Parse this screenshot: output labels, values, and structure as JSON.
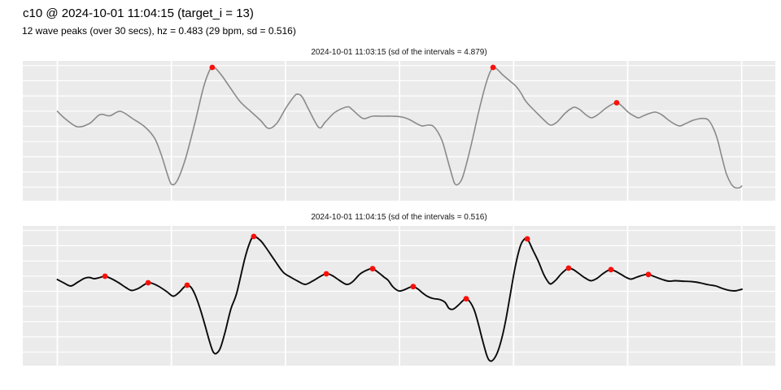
{
  "title": "c10 @ 2024-10-01 11:04:15 (target_i = 13)",
  "subtitle": "12 wave peaks (over 30 secs), hz = 0.483 (29 bpm, sd = 0.516)",
  "colors": {
    "panel_background": "#EBEBEB",
    "strip_background": "#D4D4D4",
    "gridline": "#FFFFFF",
    "series_top": "#8A8A8A",
    "series_bottom": "#0A0A0A",
    "peak_marker": "#F8100A"
  },
  "chart_data": [
    {
      "type": "line",
      "title": "2024-10-01 11:03:15 (sd of the intervals = 4.879)",
      "x_unit": "seconds",
      "x_range": [
        0,
        30
      ],
      "x_gridlines": [
        0,
        5,
        10,
        15,
        20,
        25,
        30
      ],
      "y_unit": "normalized amplitude (axis unlabeled in figure)",
      "y_range": [
        -1,
        1
      ],
      "grid": true,
      "legend": "none",
      "line_color": "#8A8A8A",
      "points": [
        [
          0,
          0.279
        ],
        [
          0.34,
          0.174
        ],
        [
          0.87,
          0.058
        ],
        [
          1.41,
          0.105
        ],
        [
          1.87,
          0.233
        ],
        [
          2.3,
          0.215
        ],
        [
          2.76,
          0.279
        ],
        [
          3.3,
          0.174
        ],
        [
          3.83,
          0.058
        ],
        [
          4.26,
          -0.105
        ],
        [
          4.55,
          -0.337
        ],
        [
          4.83,
          -0.628
        ],
        [
          5.01,
          -0.767
        ],
        [
          5.26,
          -0.709
        ],
        [
          5.62,
          -0.395
        ],
        [
          6.04,
          0.128
        ],
        [
          6.4,
          0.616
        ],
        [
          6.65,
          0.849
        ],
        [
          6.79,
          0.907
        ],
        [
          6.97,
          0.884
        ],
        [
          7.26,
          0.767
        ],
        [
          7.58,
          0.616
        ],
        [
          8.01,
          0.419
        ],
        [
          8.47,
          0.279
        ],
        [
          8.9,
          0.151
        ],
        [
          9.25,
          0.035
        ],
        [
          9.61,
          0.105
        ],
        [
          10.04,
          0.337
        ],
        [
          10.4,
          0.5
        ],
        [
          10.57,
          0.523
        ],
        [
          10.75,
          0.477
        ],
        [
          11.04,
          0.291
        ],
        [
          11.47,
          0.047
        ],
        [
          11.75,
          0.128
        ],
        [
          12.18,
          0.267
        ],
        [
          12.71,
          0.343
        ],
        [
          12.93,
          0.302
        ],
        [
          13.25,
          0.209
        ],
        [
          13.46,
          0.174
        ],
        [
          13.82,
          0.209
        ],
        [
          14.25,
          0.209
        ],
        [
          14.68,
          0.209
        ],
        [
          15.1,
          0.198
        ],
        [
          15.42,
          0.163
        ],
        [
          15.74,
          0.105
        ],
        [
          15.99,
          0.07
        ],
        [
          16.24,
          0.081
        ],
        [
          16.46,
          0.07
        ],
        [
          16.67,
          -0.012
        ],
        [
          16.89,
          -0.163
        ],
        [
          17.1,
          -0.407
        ],
        [
          17.31,
          -0.651
        ],
        [
          17.42,
          -0.756
        ],
        [
          17.56,
          -0.767
        ],
        [
          17.74,
          -0.686
        ],
        [
          17.95,
          -0.453
        ],
        [
          18.21,
          -0.105
        ],
        [
          18.45,
          0.244
        ],
        [
          18.7,
          0.57
        ],
        [
          18.92,
          0.802
        ],
        [
          19.1,
          0.907
        ],
        [
          19.27,
          0.884
        ],
        [
          19.52,
          0.802
        ],
        [
          19.81,
          0.721
        ],
        [
          20.1,
          0.64
        ],
        [
          20.31,
          0.547
        ],
        [
          20.52,
          0.43
        ],
        [
          20.77,
          0.337
        ],
        [
          21.09,
          0.233
        ],
        [
          21.38,
          0.14
        ],
        [
          21.63,
          0.081
        ],
        [
          21.91,
          0.128
        ],
        [
          22.27,
          0.256
        ],
        [
          22.56,
          0.326
        ],
        [
          22.7,
          0.337
        ],
        [
          22.91,
          0.302
        ],
        [
          23.16,
          0.233
        ],
        [
          23.41,
          0.186
        ],
        [
          23.7,
          0.233
        ],
        [
          24.05,
          0.326
        ],
        [
          24.34,
          0.384
        ],
        [
          24.52,
          0.401
        ],
        [
          24.73,
          0.36
        ],
        [
          25.02,
          0.267
        ],
        [
          25.3,
          0.209
        ],
        [
          25.48,
          0.186
        ],
        [
          25.73,
          0.221
        ],
        [
          26.02,
          0.256
        ],
        [
          26.23,
          0.267
        ],
        [
          26.48,
          0.233
        ],
        [
          26.8,
          0.151
        ],
        [
          27.08,
          0.093
        ],
        [
          27.3,
          0.07
        ],
        [
          27.55,
          0.105
        ],
        [
          27.87,
          0.151
        ],
        [
          28.16,
          0.174
        ],
        [
          28.37,
          0.177
        ],
        [
          28.55,
          0.151
        ],
        [
          28.76,
          0.035
        ],
        [
          28.94,
          -0.128
        ],
        [
          29.12,
          -0.36
        ],
        [
          29.33,
          -0.616
        ],
        [
          29.55,
          -0.767
        ],
        [
          29.72,
          -0.814
        ],
        [
          29.9,
          -0.814
        ],
        [
          30,
          -0.791
        ]
      ],
      "peaks": [
        [
          6.79,
          0.907
        ],
        [
          19.1,
          0.907
        ],
        [
          24.52,
          0.401
        ]
      ]
    },
    {
      "type": "line",
      "title": "2024-10-01 11:04:15 (sd of the intervals = 0.516)",
      "x_unit": "seconds",
      "x_range": [
        0,
        30
      ],
      "x_gridlines": [
        0,
        5,
        10,
        15,
        20,
        25,
        30
      ],
      "y_unit": "normalized amplitude (axis unlabeled in figure)",
      "y_range": [
        -1,
        1
      ],
      "grid": true,
      "legend": "none",
      "line_color": "#0A0A0A",
      "points": [
        [
          0,
          0.233
        ],
        [
          0.27,
          0.186
        ],
        [
          0.59,
          0.14
        ],
        [
          0.91,
          0.198
        ],
        [
          1.19,
          0.25
        ],
        [
          1.41,
          0.262
        ],
        [
          1.62,
          0.244
        ],
        [
          1.87,
          0.262
        ],
        [
          2.09,
          0.279
        ],
        [
          2.37,
          0.244
        ],
        [
          2.69,
          0.186
        ],
        [
          3.01,
          0.116
        ],
        [
          3.26,
          0.076
        ],
        [
          3.55,
          0.105
        ],
        [
          3.8,
          0.157
        ],
        [
          3.98,
          0.186
        ],
        [
          4.19,
          0.174
        ],
        [
          4.48,
          0.128
        ],
        [
          4.8,
          0.058
        ],
        [
          5.08,
          -0.006
        ],
        [
          5.33,
          0.047
        ],
        [
          5.55,
          0.122
        ],
        [
          5.69,
          0.151
        ],
        [
          5.87,
          0.116
        ],
        [
          6.04,
          0.012
        ],
        [
          6.26,
          -0.186
        ],
        [
          6.47,
          -0.419
        ],
        [
          6.69,
          -0.674
        ],
        [
          6.83,
          -0.802
        ],
        [
          6.97,
          -0.826
        ],
        [
          7.15,
          -0.744
        ],
        [
          7.36,
          -0.512
        ],
        [
          7.61,
          -0.186
        ],
        [
          7.86,
          0.035
        ],
        [
          8.22,
          0.535
        ],
        [
          8.43,
          0.756
        ],
        [
          8.61,
          0.849
        ],
        [
          8.9,
          0.791
        ],
        [
          9.15,
          0.686
        ],
        [
          9.54,
          0.5
        ],
        [
          9.9,
          0.337
        ],
        [
          10.22,
          0.267
        ],
        [
          10.54,
          0.209
        ],
        [
          10.86,
          0.163
        ],
        [
          11.18,
          0.209
        ],
        [
          11.54,
          0.279
        ],
        [
          11.79,
          0.314
        ],
        [
          12.04,
          0.291
        ],
        [
          12.36,
          0.221
        ],
        [
          12.68,
          0.163
        ],
        [
          12.93,
          0.198
        ],
        [
          13.28,
          0.314
        ],
        [
          13.61,
          0.372
        ],
        [
          13.82,
          0.387
        ],
        [
          14.1,
          0.326
        ],
        [
          14.32,
          0.267
        ],
        [
          14.5,
          0.221
        ],
        [
          14.71,
          0.128
        ],
        [
          14.96,
          0.07
        ],
        [
          15.17,
          0.081
        ],
        [
          15.42,
          0.116
        ],
        [
          15.6,
          0.131
        ],
        [
          15.82,
          0.093
        ],
        [
          16.03,
          0.035
        ],
        [
          16.24,
          -0.012
        ],
        [
          16.49,
          -0.041
        ],
        [
          16.74,
          -0.052
        ],
        [
          16.99,
          -0.093
        ],
        [
          17.17,
          -0.18
        ],
        [
          17.35,
          -0.192
        ],
        [
          17.56,
          -0.14
        ],
        [
          17.78,
          -0.07
        ],
        [
          17.92,
          -0.043
        ],
        [
          18.1,
          -0.093
        ],
        [
          18.28,
          -0.209
        ],
        [
          18.45,
          -0.395
        ],
        [
          18.63,
          -0.628
        ],
        [
          18.81,
          -0.837
        ],
        [
          18.92,
          -0.919
        ],
        [
          19.06,
          -0.93
        ],
        [
          19.24,
          -0.849
        ],
        [
          19.42,
          -0.686
        ],
        [
          19.63,
          -0.395
        ],
        [
          19.84,
          -0.012
        ],
        [
          20.06,
          0.395
        ],
        [
          20.27,
          0.686
        ],
        [
          20.42,
          0.791
        ],
        [
          20.6,
          0.814
        ],
        [
          20.85,
          0.651
        ],
        [
          21.09,
          0.488
        ],
        [
          21.31,
          0.314
        ],
        [
          21.49,
          0.209
        ],
        [
          21.63,
          0.169
        ],
        [
          21.84,
          0.221
        ],
        [
          22.09,
          0.314
        ],
        [
          22.31,
          0.378
        ],
        [
          22.41,
          0.395
        ],
        [
          22.63,
          0.372
        ],
        [
          22.88,
          0.314
        ],
        [
          23.13,
          0.256
        ],
        [
          23.38,
          0.215
        ],
        [
          23.63,
          0.244
        ],
        [
          23.91,
          0.314
        ],
        [
          24.13,
          0.36
        ],
        [
          24.27,
          0.374
        ],
        [
          24.48,
          0.349
        ],
        [
          24.73,
          0.302
        ],
        [
          24.98,
          0.256
        ],
        [
          25.16,
          0.238
        ],
        [
          25.41,
          0.267
        ],
        [
          25.7,
          0.297
        ],
        [
          25.91,
          0.305
        ],
        [
          26.23,
          0.267
        ],
        [
          26.52,
          0.233
        ],
        [
          26.8,
          0.209
        ],
        [
          27.08,
          0.215
        ],
        [
          27.37,
          0.209
        ],
        [
          27.66,
          0.206
        ],
        [
          27.94,
          0.198
        ],
        [
          28.23,
          0.18
        ],
        [
          28.55,
          0.157
        ],
        [
          28.87,
          0.14
        ],
        [
          29.15,
          0.105
        ],
        [
          29.44,
          0.078
        ],
        [
          29.69,
          0.07
        ],
        [
          29.87,
          0.081
        ],
        [
          30.01,
          0.093
        ]
      ],
      "peaks": [
        [
          2.09,
          0.279
        ],
        [
          3.98,
          0.186
        ],
        [
          5.69,
          0.151
        ],
        [
          8.61,
          0.849
        ],
        [
          11.79,
          0.314
        ],
        [
          13.82,
          0.387
        ],
        [
          15.6,
          0.131
        ],
        [
          17.92,
          -0.043
        ],
        [
          20.6,
          0.814
        ],
        [
          22.41,
          0.395
        ],
        [
          24.27,
          0.374
        ],
        [
          25.91,
          0.305
        ]
      ]
    }
  ]
}
